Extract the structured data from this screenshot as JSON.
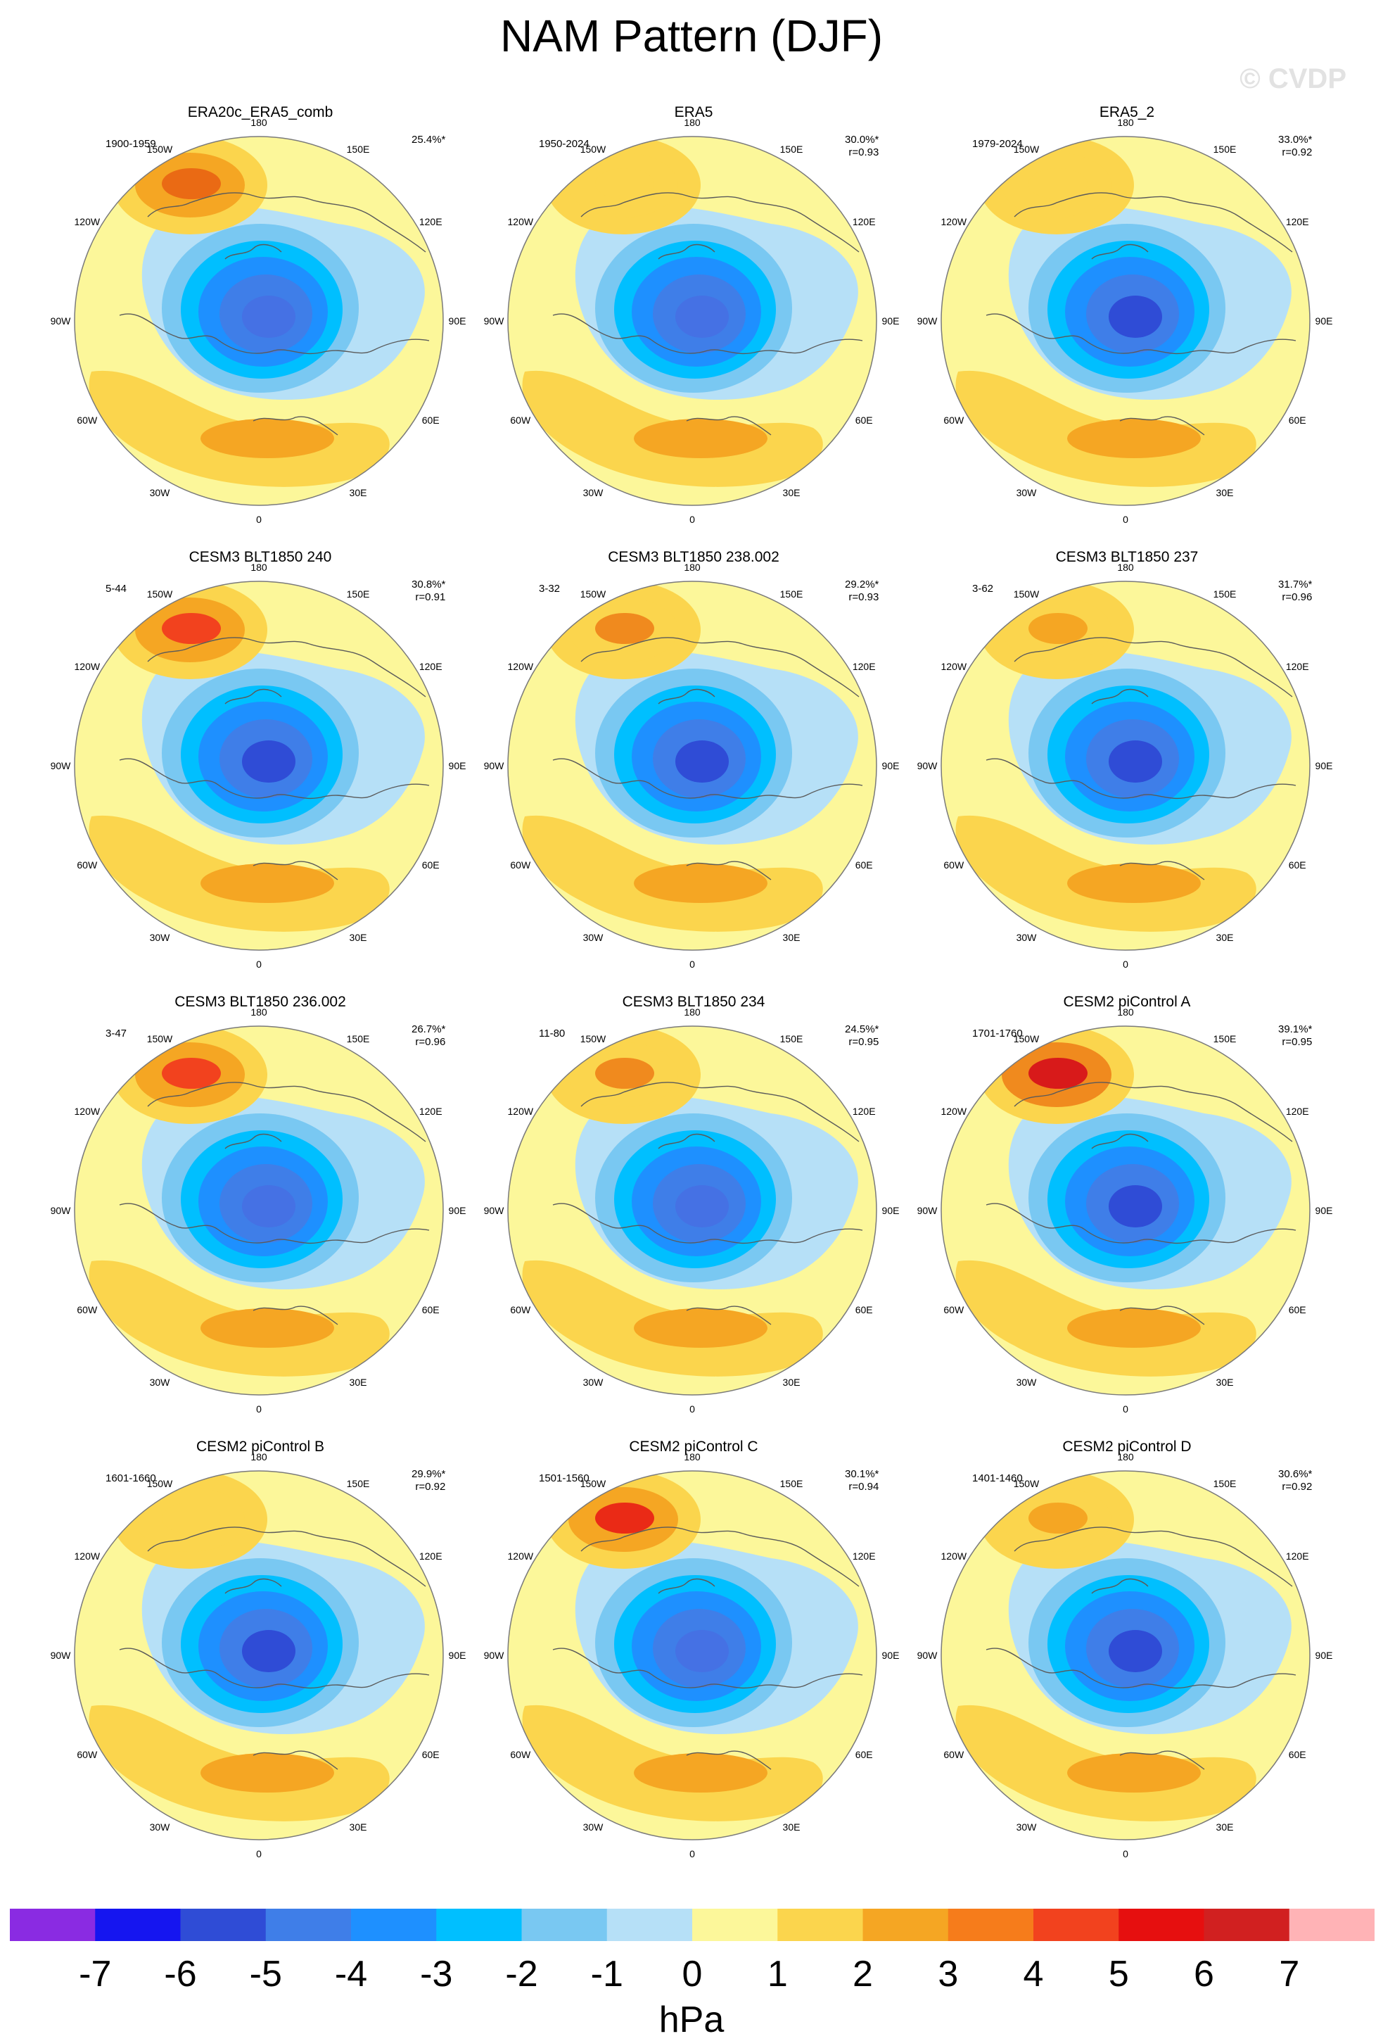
{
  "title": "NAM Pattern (DJF)",
  "watermark": "© CVDP",
  "panels": [
    {
      "title": "ERA20c_ERA5_comb",
      "period": "1900-1959",
      "pct": "25.4%*",
      "r": "",
      "nh": "#f5a623",
      "nhc": "#ea6a14",
      "dip": "#4571e4"
    },
    {
      "title": "ERA5",
      "period": "1950-2024",
      "pct": "30.0%*",
      "r": "r=0.93",
      "nh": "#fbd54d",
      "nhc": "#fbd54d",
      "dip": "#4571e4"
    },
    {
      "title": "ERA5_2",
      "period": "1979-2024",
      "pct": "33.0%*",
      "r": "r=0.92",
      "nh": "#fbd54d",
      "nhc": "#fbd54d",
      "dip": "#2f4cd6"
    },
    {
      "title": "CESM3 BLT1850 240",
      "period": "5-44",
      "pct": "30.8%*",
      "r": "r=0.91",
      "nh": "#f5a623",
      "nhc": "#f2421e",
      "dip": "#2f4cd6"
    },
    {
      "title": "CESM3 BLT1850 238.002",
      "period": "3-32",
      "pct": "29.2%*",
      "r": "r=0.93",
      "nh": "#fbd54d",
      "nhc": "#f08a1e",
      "dip": "#2f4cd6"
    },
    {
      "title": "CESM3 BLT1850 237",
      "period": "3-62",
      "pct": "31.7%*",
      "r": "r=0.96",
      "nh": "#fbd54d",
      "nhc": "#f5a623",
      "dip": "#2f4cd6"
    },
    {
      "title": "CESM3 BLT1850 236.002",
      "period": "3-47",
      "pct": "26.7%*",
      "r": "r=0.96",
      "nh": "#f5a623",
      "nhc": "#f2421e",
      "dip": "#4571e4"
    },
    {
      "title": "CESM3 BLT1850 234",
      "period": "11-80",
      "pct": "24.5%*",
      "r": "r=0.95",
      "nh": "#fbd54d",
      "nhc": "#f08a1e",
      "dip": "#4571e4"
    },
    {
      "title": "CESM2 piControl A",
      "period": "1701-1760",
      "pct": "39.1%*",
      "r": "r=0.95",
      "nh": "#f08a1e",
      "nhc": "#d81a1a",
      "dip": "#2f4cd6"
    },
    {
      "title": "CESM2 piControl B",
      "period": "1601-1660",
      "pct": "29.9%*",
      "r": "r=0.92",
      "nh": "#fbd54d",
      "nhc": "#fbd54d",
      "dip": "#2f4cd6"
    },
    {
      "title": "CESM2 piControl C",
      "period": "1501-1560",
      "pct": "30.1%*",
      "r": "r=0.94",
      "nh": "#f5a623",
      "nhc": "#ea2a16",
      "dip": "#4571e4"
    },
    {
      "title": "CESM2 piControl D",
      "period": "1401-1460",
      "pct": "30.6%*",
      "r": "r=0.92",
      "nh": "#fbd54d",
      "nhc": "#f5a623",
      "dip": "#2f4cd6"
    }
  ],
  "lon_labels": [
    "180",
    "150E",
    "120E",
    "90E",
    "60E",
    "30E",
    "0",
    "30W",
    "60W",
    "90W",
    "120W",
    "150W"
  ],
  "colorbar": {
    "colors": [
      "#8a2be2",
      "#1515f0",
      "#2f4cd6",
      "#3f7ee8",
      "#1e90ff",
      "#00bfff",
      "#79c8f2",
      "#b6e0f7",
      "#fcf79a",
      "#fbd54d",
      "#f5a623",
      "#f67c1b",
      "#f2421e",
      "#e60f0f",
      "#d12020",
      "#ffb3b6"
    ],
    "labels": [
      "-7",
      "-6",
      "-5",
      "-4",
      "-3",
      "-2",
      "-1",
      "0",
      "1",
      "2",
      "3",
      "4",
      "5",
      "6",
      "7"
    ],
    "units": "hPa"
  }
}
